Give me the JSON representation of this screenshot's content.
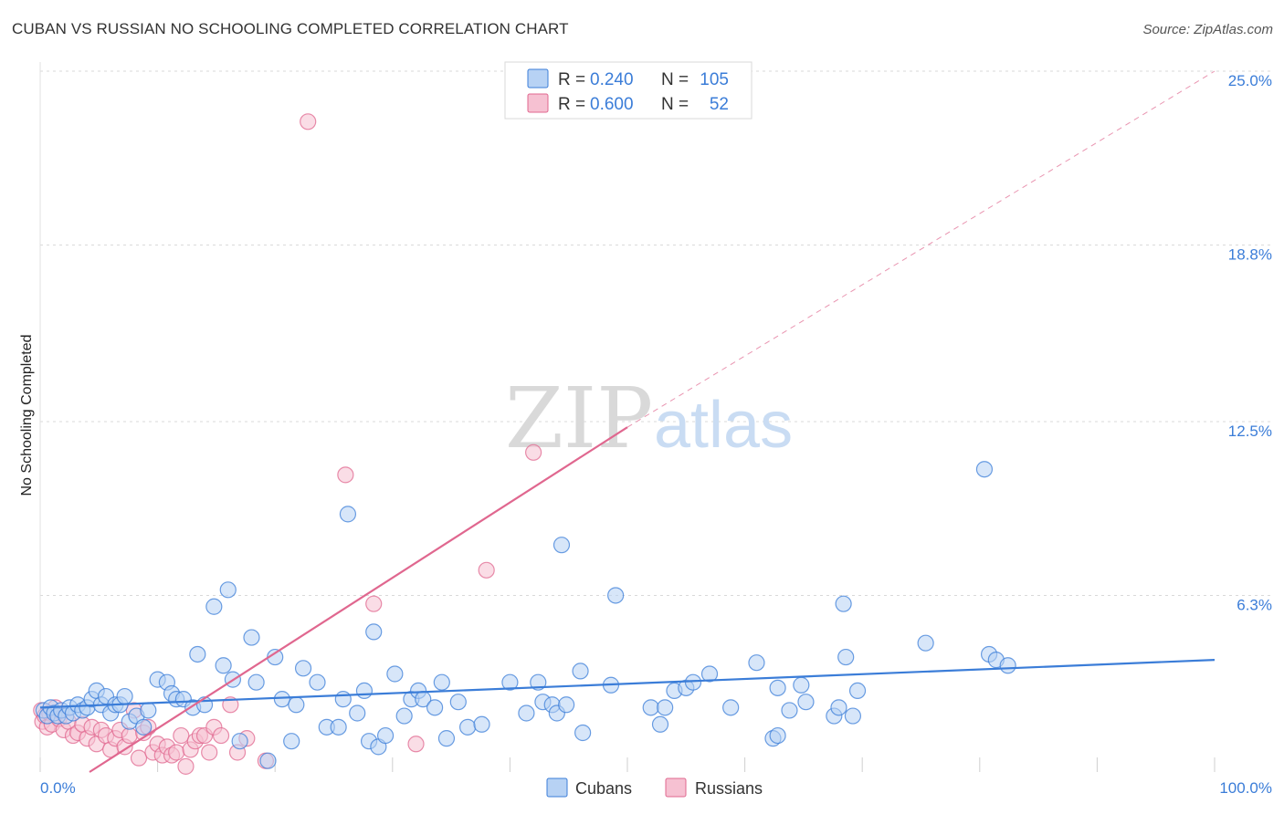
{
  "title": "CUBAN VS RUSSIAN NO SCHOOLING COMPLETED CORRELATION CHART",
  "source": "Source: ZipAtlas.com",
  "watermark": {
    "zip": "ZIP",
    "atlas": "atlas"
  },
  "colors": {
    "cubans": "#3b7dd8",
    "russians": "#e0678f",
    "cubans_fill": "#b7d2f4",
    "russians_fill": "#f6c1d2",
    "tick_text": "#3b7dd8"
  },
  "legend": {
    "rows": [
      {
        "r_label": "R =",
        "r_value": "0.240",
        "n_label": "N =",
        "n_value": "105"
      },
      {
        "r_label": "R =",
        "r_value": "0.600",
        "n_label": "N =",
        "n_value": "52"
      }
    ]
  },
  "bottom_legend": {
    "cubans": "Cubans",
    "russians": "Russians"
  },
  "chart_data": {
    "type": "scatter",
    "title": "CUBAN VS RUSSIAN NO SCHOOLING COMPLETED CORRELATION CHART",
    "xlabel": "",
    "ylabel": "No Schooling Completed",
    "xlim": [
      0,
      100
    ],
    "ylim": [
      0,
      25
    ],
    "x_tick_labels": [
      "0.0%",
      "100.0%"
    ],
    "y_ticks": [
      6.3,
      12.5,
      18.8,
      25.0
    ],
    "y_tick_labels": [
      "6.3%",
      "12.5%",
      "18.8%",
      "25.0%"
    ],
    "grid": true,
    "legend_position": "top-center",
    "series": [
      {
        "name": "Cubans",
        "stats": {
          "R": 0.24,
          "N": 105
        },
        "trend": {
          "x": [
            0,
            100
          ],
          "y": [
            2.3,
            4.0
          ]
        },
        "points": [
          [
            0.3,
            2.2
          ],
          [
            0.6,
            2.0
          ],
          [
            0.9,
            2.3
          ],
          [
            1.2,
            2.1
          ],
          [
            1.5,
            2.0
          ],
          [
            1.8,
            2.2
          ],
          [
            2.2,
            2.0
          ],
          [
            2.5,
            2.3
          ],
          [
            2.8,
            2.1
          ],
          [
            3.2,
            2.4
          ],
          [
            3.6,
            2.2
          ],
          [
            4.0,
            2.3
          ],
          [
            4.4,
            2.6
          ],
          [
            4.8,
            2.9
          ],
          [
            5.2,
            2.4
          ],
          [
            5.6,
            2.7
          ],
          [
            6.0,
            2.1
          ],
          [
            6.4,
            2.4
          ],
          [
            6.8,
            2.4
          ],
          [
            7.2,
            2.7
          ],
          [
            7.6,
            1.8
          ],
          [
            8.2,
            2.0
          ],
          [
            8.8,
            1.6
          ],
          [
            9.2,
            2.2
          ],
          [
            10.0,
            3.3
          ],
          [
            10.8,
            3.2
          ],
          [
            11.2,
            2.8
          ],
          [
            11.6,
            2.6
          ],
          [
            12.2,
            2.6
          ],
          [
            13.0,
            2.3
          ],
          [
            13.4,
            4.2
          ],
          [
            14.0,
            2.4
          ],
          [
            14.8,
            5.9
          ],
          [
            15.6,
            3.8
          ],
          [
            16.0,
            6.5
          ],
          [
            16.4,
            3.3
          ],
          [
            17.0,
            1.1
          ],
          [
            18.0,
            4.8
          ],
          [
            18.4,
            3.2
          ],
          [
            19.4,
            0.4
          ],
          [
            20.0,
            4.1
          ],
          [
            20.6,
            2.6
          ],
          [
            21.4,
            1.1
          ],
          [
            21.8,
            2.4
          ],
          [
            22.4,
            3.7
          ],
          [
            23.6,
            3.2
          ],
          [
            24.4,
            1.6
          ],
          [
            25.4,
            1.6
          ],
          [
            25.8,
            2.6
          ],
          [
            26.2,
            9.2
          ],
          [
            27.0,
            2.1
          ],
          [
            27.6,
            2.9
          ],
          [
            28.0,
            1.1
          ],
          [
            28.4,
            5.0
          ],
          [
            28.8,
            0.9
          ],
          [
            29.4,
            1.3
          ],
          [
            30.2,
            3.5
          ],
          [
            31.0,
            2.0
          ],
          [
            31.6,
            2.6
          ],
          [
            32.2,
            2.9
          ],
          [
            32.6,
            2.6
          ],
          [
            33.6,
            2.3
          ],
          [
            34.2,
            3.2
          ],
          [
            34.6,
            1.2
          ],
          [
            35.6,
            2.5
          ],
          [
            36.4,
            1.6
          ],
          [
            37.6,
            1.7
          ],
          [
            40.0,
            3.2
          ],
          [
            41.4,
            2.1
          ],
          [
            42.4,
            3.2
          ],
          [
            42.8,
            2.5
          ],
          [
            43.6,
            2.4
          ],
          [
            44.0,
            2.1
          ],
          [
            44.4,
            8.1
          ],
          [
            44.8,
            2.4
          ],
          [
            46.0,
            3.6
          ],
          [
            46.2,
            1.4
          ],
          [
            48.6,
            3.1
          ],
          [
            49.0,
            6.3
          ],
          [
            52.0,
            2.3
          ],
          [
            52.8,
            1.7
          ],
          [
            53.2,
            2.3
          ],
          [
            54.0,
            2.9
          ],
          [
            55.0,
            3.0
          ],
          [
            55.6,
            3.2
          ],
          [
            57.0,
            3.5
          ],
          [
            58.8,
            2.3
          ],
          [
            61.0,
            3.9
          ],
          [
            62.4,
            1.2
          ],
          [
            62.8,
            1.3
          ],
          [
            62.8,
            3.0
          ],
          [
            63.8,
            2.2
          ],
          [
            64.8,
            3.1
          ],
          [
            65.2,
            2.5
          ],
          [
            67.6,
            2.0
          ],
          [
            68.0,
            2.3
          ],
          [
            68.4,
            6.0
          ],
          [
            68.6,
            4.1
          ],
          [
            69.2,
            2.0
          ],
          [
            69.6,
            2.9
          ],
          [
            75.4,
            4.6
          ],
          [
            80.4,
            10.8
          ],
          [
            80.8,
            4.2
          ],
          [
            81.4,
            4.0
          ],
          [
            82.4,
            3.8
          ]
        ]
      },
      {
        "name": "Russians",
        "stats": {
          "R": 0.6,
          "N": 52
        },
        "trend": {
          "x": [
            4.2,
            50
          ],
          "y": [
            0.0,
            12.3
          ]
        },
        "trend_extension": {
          "x": [
            50,
            100
          ],
          "y": [
            12.3,
            25.0
          ]
        },
        "points": [
          [
            0.1,
            2.2
          ],
          [
            0.2,
            1.8
          ],
          [
            0.4,
            2.0
          ],
          [
            0.6,
            1.6
          ],
          [
            0.8,
            2.1
          ],
          [
            1.0,
            1.7
          ],
          [
            1.3,
            2.3
          ],
          [
            1.6,
            1.9
          ],
          [
            2.0,
            1.5
          ],
          [
            2.4,
            1.8
          ],
          [
            2.8,
            1.3
          ],
          [
            3.2,
            1.4
          ],
          [
            3.6,
            1.7
          ],
          [
            4.0,
            1.2
          ],
          [
            4.4,
            1.6
          ],
          [
            4.8,
            1.0
          ],
          [
            5.2,
            1.5
          ],
          [
            5.6,
            1.3
          ],
          [
            6.0,
            0.8
          ],
          [
            6.4,
            1.2
          ],
          [
            6.8,
            1.5
          ],
          [
            7.2,
            0.9
          ],
          [
            7.6,
            1.3
          ],
          [
            8.0,
            2.2
          ],
          [
            8.4,
            0.5
          ],
          [
            8.8,
            1.4
          ],
          [
            9.2,
            1.6
          ],
          [
            9.6,
            0.7
          ],
          [
            10.0,
            1.0
          ],
          [
            10.4,
            0.6
          ],
          [
            10.8,
            0.9
          ],
          [
            11.2,
            0.6
          ],
          [
            11.6,
            0.7
          ],
          [
            12.0,
            1.3
          ],
          [
            12.4,
            0.2
          ],
          [
            12.8,
            0.8
          ],
          [
            13.2,
            1.1
          ],
          [
            13.6,
            1.3
          ],
          [
            14.0,
            1.3
          ],
          [
            14.4,
            0.7
          ],
          [
            14.8,
            1.6
          ],
          [
            15.4,
            1.3
          ],
          [
            16.2,
            2.4
          ],
          [
            16.8,
            0.7
          ],
          [
            17.6,
            1.2
          ],
          [
            19.2,
            0.4
          ],
          [
            22.8,
            23.2
          ],
          [
            26.0,
            10.6
          ],
          [
            28.4,
            6.0
          ],
          [
            32.0,
            1.0
          ],
          [
            38.0,
            7.2
          ],
          [
            42.0,
            11.4
          ]
        ]
      }
    ]
  }
}
